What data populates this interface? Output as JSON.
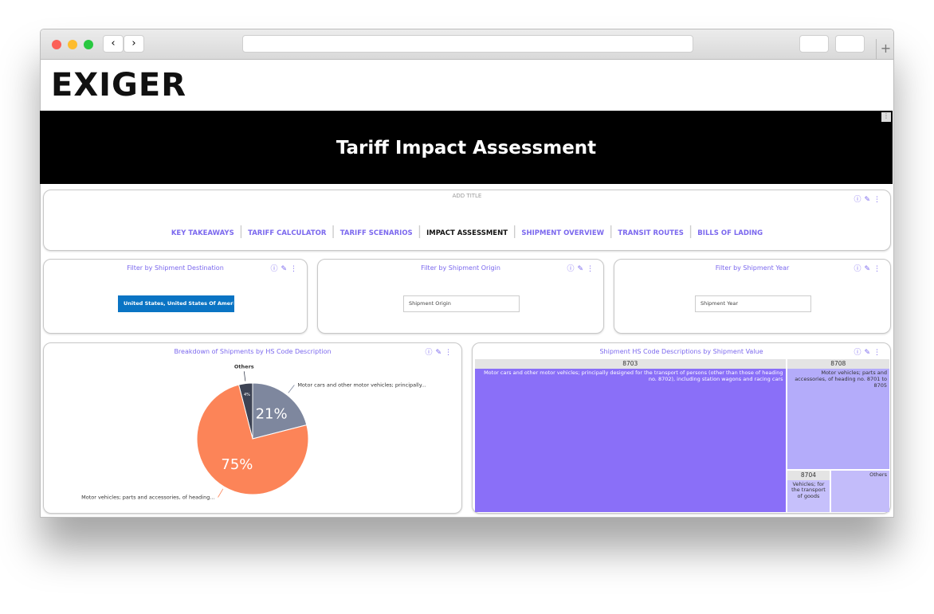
{
  "logo": "EXIGER",
  "banner_title": "Tariff Impact Assessment",
  "nav": {
    "add_title": "ADD TITLE",
    "links": [
      {
        "label": "KEY TAKEAWAYS",
        "active": false
      },
      {
        "label": "TARIFF CALCULATOR",
        "active": false
      },
      {
        "label": "TARIFF SCENARIOS",
        "active": false
      },
      {
        "label": "IMPACT ASSESSMENT",
        "active": true
      },
      {
        "label": "SHIPMENT OVERVIEW",
        "active": false
      },
      {
        "label": "TRANSIT ROUTES",
        "active": false
      },
      {
        "label": "BILLS OF LADING",
        "active": false
      }
    ]
  },
  "filters": [
    {
      "title": "Filter by Shipment Destination",
      "control": "button",
      "text": "United States, United States Of Ameri..."
    },
    {
      "title": "Filter by Shipment Origin",
      "control": "input",
      "text": "Shipment Origin"
    },
    {
      "title": "Filter by Shipment Year",
      "control": "input",
      "text": "Shipment Year"
    }
  ],
  "chart_data": [
    {
      "type": "pie",
      "title": "Breakdown of Shipments by HS Code Description",
      "categories": [
        "Others",
        "Motor cars and other motor vehicles; principally...",
        "Motor vehicles; parts and accessories, of heading..."
      ],
      "values": [
        4,
        21,
        75
      ],
      "value_labels": [
        "4%",
        "21%",
        "75%"
      ],
      "colors": [
        "#3d4354",
        "#7e879e",
        "#fc8458"
      ]
    },
    {
      "type": "treemap",
      "title": "Shipment HS Code Descriptions by Shipment Value",
      "categories": [
        "8703",
        "8708",
        "8704",
        null
      ],
      "descriptions": [
        "Motor cars and other motor vehicles; principally designed for the transport of persons (other than those of heading no. 8702), including station wagons and racing cars",
        "Motor vehicles; parts and accessories, of heading no. 8701 to 8705",
        "Vehicles; for the transport of goods",
        "Others"
      ],
      "values": [
        75,
        18,
        3,
        4
      ],
      "colors": [
        "#8a6ff8",
        "#b4acfa",
        "#c6c0fb",
        "#c3bcfa"
      ]
    }
  ]
}
